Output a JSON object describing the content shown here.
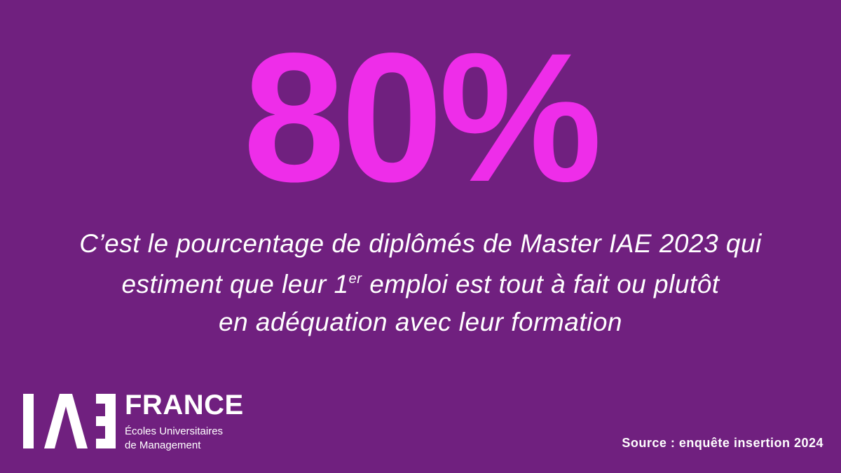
{
  "headline": "80%",
  "statement": {
    "line1": "C’est le pourcentage de diplômés de Master IAE 2023 qui",
    "line2_start": "estiment que leur 1",
    "line2_sup": "er",
    "line2_end": " emploi est tout à fait ou plutôt",
    "line3": "en adéquation avec leur formation"
  },
  "logo": {
    "name": "FRANCE",
    "line1": "Écoles Universitaires",
    "line2": "de Management"
  },
  "source": "Source : enquête insertion 2024"
}
